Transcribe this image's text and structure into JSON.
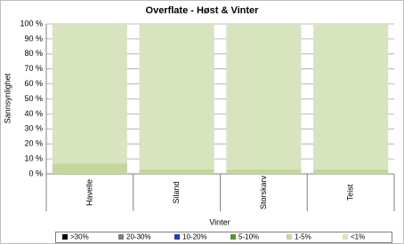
{
  "chart_data": {
    "type": "stacked_bar",
    "title": "Overflate - Høst & Vinter",
    "x_label": "Vinter",
    "y_label": "Sannsynlighet",
    "categories": [
      "Havelle",
      "Siland",
      "Storskarv",
      "Teist"
    ],
    "series": [
      {
        "name": ">30%",
        "color": "#000000",
        "values": [
          0,
          0,
          0,
          0
        ]
      },
      {
        "name": "20-30%",
        "color": "#7f7f7f",
        "values": [
          0,
          0,
          0,
          0
        ]
      },
      {
        "name": "10-20%",
        "color": "#1f3fbf",
        "values": [
          0,
          0,
          0,
          0
        ]
      },
      {
        "name": "5-10%",
        "color": "#4f9a2a",
        "values": [
          0,
          0,
          0,
          0
        ]
      },
      {
        "name": "1-5%",
        "color": "#c3d69b",
        "values": [
          7,
          3,
          3,
          3
        ]
      },
      {
        "name": "<1%",
        "color": "#d7e4bd",
        "values": [
          93,
          97,
          97,
          97
        ]
      }
    ],
    "ylim": [
      0,
      100
    ],
    "yticks": [
      {
        "value": 0,
        "label": "0 %"
      },
      {
        "value": 10,
        "label": "10 %"
      },
      {
        "value": 20,
        "label": "20 %"
      },
      {
        "value": 30,
        "label": "30 %"
      },
      {
        "value": 40,
        "label": "40 %"
      },
      {
        "value": 50,
        "label": "50 %"
      },
      {
        "value": 60,
        "label": "60 %"
      },
      {
        "value": 70,
        "label": "70 %"
      },
      {
        "value": 80,
        "label": "80 %"
      },
      {
        "value": 90,
        "label": "90 %"
      },
      {
        "value": 100,
        "label": "100 %"
      }
    ],
    "grid": true,
    "legend": "bottom"
  }
}
